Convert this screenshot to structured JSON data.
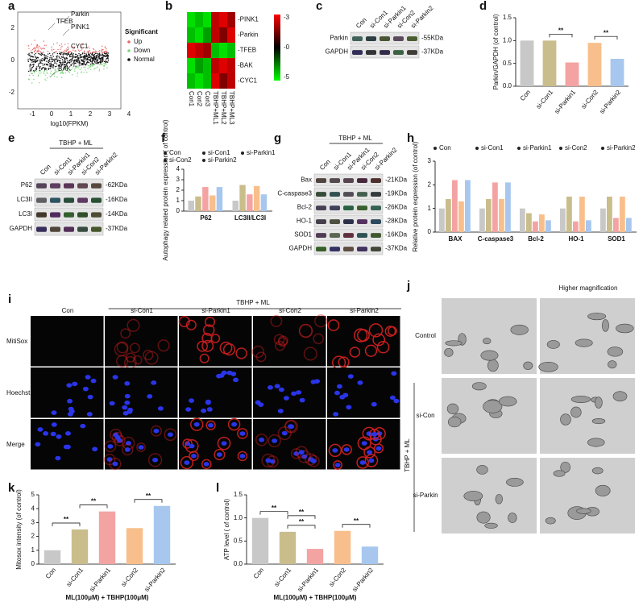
{
  "letters": [
    "a",
    "b",
    "c",
    "d",
    "e",
    "f",
    "g",
    "h",
    "i",
    "j",
    "k",
    "l"
  ],
  "a": {
    "legend_title": "Significant",
    "legend": [
      "Up",
      "Down",
      "Normal"
    ],
    "genes": [
      "Parkin",
      "TFEB",
      "PINK1",
      "CYC1",
      "BAK"
    ],
    "x_label": "log10(FPKM)",
    "xticks": [
      -1,
      0,
      1,
      2,
      3,
      4
    ],
    "yticks": [
      2,
      0,
      -2
    ]
  },
  "b": {
    "rows": [
      "-PINK1",
      "-Parkin",
      "-TFEB",
      "-BAK",
      "-CYC1"
    ],
    "cols": [
      "Con1",
      "Con2",
      "Con3",
      "TBHP+ML1",
      "TBHP+ML2",
      "TBHP+ML3"
    ],
    "cells": [
      [
        -4.5,
        -4,
        -4.5,
        2,
        2.5,
        1.5
      ],
      [
        -4,
        -4.5,
        -3.5,
        2,
        1,
        2.5
      ],
      [
        2.5,
        2,
        1.5,
        -4,
        -4.5,
        -4
      ],
      [
        -4.5,
        -3.5,
        -4,
        2,
        2.5,
        2
      ],
      [
        -4,
        -4.5,
        -4,
        2.5,
        1,
        2
      ]
    ],
    "colorbar": [
      "-3",
      "-0",
      "-5"
    ]
  },
  "c": {
    "lanes": [
      "Con",
      "si-Con1",
      "si-Parkin1",
      "si-Con2",
      "si-Parkin2"
    ],
    "bands": [
      "Parkin",
      "GAPDH"
    ],
    "sizes": [
      "-55KDa",
      "-37KDa"
    ]
  },
  "e": {
    "header": "TBHP + ML",
    "lanes": [
      "Con",
      "si-Con1",
      "si-Parkin1",
      "si-Con2",
      "si-Parkin2"
    ],
    "bands": [
      "P62",
      "LC3II",
      "LC3I",
      "GAPDH"
    ],
    "sizes": [
      "-62KDa",
      "-16KDa",
      "-14KDa",
      "-37KDa"
    ]
  },
  "g": {
    "header": "TBHP + ML",
    "lanes": [
      "Con",
      "si-Con1",
      "si-Parkin1",
      "si-Con2",
      "si-Parkin2"
    ],
    "bands": [
      "Bax",
      "C-caspase3",
      "Bcl-2",
      "HO-1",
      "SOD1",
      "GAPDH"
    ],
    "sizes": [
      "-21KDa",
      "-19KDa",
      "-26KDa",
      "-28KDa",
      "-16KDa",
      "-37KDa"
    ]
  },
  "i": {
    "header": "TBHP + ML",
    "cols": [
      "Con",
      "si-Con1",
      "si-Parkin1",
      "si-Con2",
      "si-Parkin2"
    ],
    "rows": [
      "MitiSox",
      "Hoechst",
      "Merge"
    ]
  },
  "j": {
    "header": "Higher magnification",
    "rows": [
      "Control",
      "si-Con",
      "si-Parkin"
    ],
    "side": "TBHP + ML"
  },
  "chart_data": [
    {
      "type": "bar",
      "y_label": "Parkin/GAPDH (of control)",
      "categories": [
        "Con",
        "si-Con1",
        "si-Parkin1",
        "si-Con2",
        "si-Parkin2"
      ],
      "values": [
        1.0,
        1.0,
        0.52,
        0.95,
        0.6
      ],
      "colors": [
        "#c8c8c8",
        "#c9bd8b",
        "#f4a3a3",
        "#f8bf8c",
        "#a7c7ef"
      ],
      "ylim": [
        0,
        1.5
      ],
      "yticks": [
        {
          "value": 0,
          "label": "0.0"
        },
        {
          "value": 0.5,
          "label": "0.5"
        },
        {
          "value": 1,
          "label": "1.0"
        },
        {
          "value": 1.5,
          "label": "1.5"
        }
      ],
      "annotations": [
        "**",
        "**"
      ]
    },
    {
      "type": "grouped_bar",
      "y_label": "Autophagy related protein expression ( of control)",
      "categories": [
        "P62",
        "LC3II/LC3I"
      ],
      "series": [
        {
          "name": "Con",
          "color": "#c8c8c8",
          "values": [
            1.0,
            1.0
          ]
        },
        {
          "name": "si-Con1",
          "color": "#c9bd8b",
          "values": [
            1.4,
            2.5
          ]
        },
        {
          "name": "si-Parkin1",
          "color": "#f4a3a3",
          "values": [
            2.3,
            1.6
          ]
        },
        {
          "name": "si-Con2",
          "color": "#f8bf8c",
          "values": [
            1.5,
            2.4
          ]
        },
        {
          "name": "si-Parkin2",
          "color": "#a7c7ef",
          "values": [
            2.3,
            1.6
          ]
        }
      ],
      "ylim": [
        0,
        4
      ],
      "yticks": [
        0,
        1,
        2,
        3,
        4
      ]
    },
    {
      "type": "grouped_bar",
      "y_label": "Relative protein expression (of control)",
      "categories": [
        "BAX",
        "C-caspase3",
        "Bcl-2",
        "HO-1",
        "SOD1"
      ],
      "series": [
        {
          "name": "Con",
          "color": "#c8c8c8",
          "values": [
            1.0,
            1.0,
            1.0,
            1.0,
            1.0
          ]
        },
        {
          "name": "si-Con1",
          "color": "#c9bd8b",
          "values": [
            1.4,
            1.4,
            0.8,
            1.5,
            1.5
          ]
        },
        {
          "name": "si-Parkin1",
          "color": "#f4a3a3",
          "values": [
            2.2,
            2.1,
            0.45,
            0.45,
            0.6
          ]
        },
        {
          "name": "si-Con2",
          "color": "#f8bf8c",
          "values": [
            1.3,
            1.4,
            0.75,
            1.5,
            1.5
          ]
        },
        {
          "name": "si-Parkin2",
          "color": "#a7c7ef",
          "values": [
            2.2,
            2.1,
            0.5,
            0.5,
            0.6
          ]
        }
      ],
      "ylim": [
        0,
        3
      ],
      "yticks": [
        0,
        1,
        2,
        3
      ]
    },
    {
      "type": "bar",
      "y_label": "Mitosox intensity (of control)",
      "x_label": "ML(100μM) + TBHP(100μM)",
      "categories": [
        "Con",
        "si-Con1",
        "si-Parkin1",
        "si-Con2",
        "si-Parkin2"
      ],
      "values": [
        1.0,
        2.5,
        3.8,
        2.6,
        4.2
      ],
      "colors": [
        "#c8c8c8",
        "#c9bd8b",
        "#f4a3a3",
        "#f8bf8c",
        "#a7c7ef"
      ],
      "ylim": [
        0,
        5
      ],
      "yticks": [
        0,
        1,
        2,
        3,
        4,
        5
      ],
      "annotations": [
        "**",
        "**",
        "**"
      ]
    },
    {
      "type": "bar",
      "y_label": "ATP level ( of control)",
      "x_label": "ML(100μM) + TBHP(100μM)",
      "categories": [
        "Con",
        "si-Con1",
        "si-Parkin1",
        "si-Con2",
        "si-Parkin2"
      ],
      "values": [
        1.0,
        0.7,
        0.33,
        0.72,
        0.38
      ],
      "colors": [
        "#c8c8c8",
        "#c9bd8b",
        "#f4a3a3",
        "#f8bf8c",
        "#a7c7ef"
      ],
      "ylim": [
        0,
        1.5
      ],
      "yticks": [
        {
          "value": 0,
          "label": "0.0"
        },
        {
          "value": 0.5,
          "label": "0.5"
        },
        {
          "value": 1,
          "label": "1.0"
        },
        {
          "value": 1.5,
          "label": "1.5"
        }
      ],
      "annotations": [
        "**",
        "**",
        "**",
        "**"
      ]
    }
  ]
}
